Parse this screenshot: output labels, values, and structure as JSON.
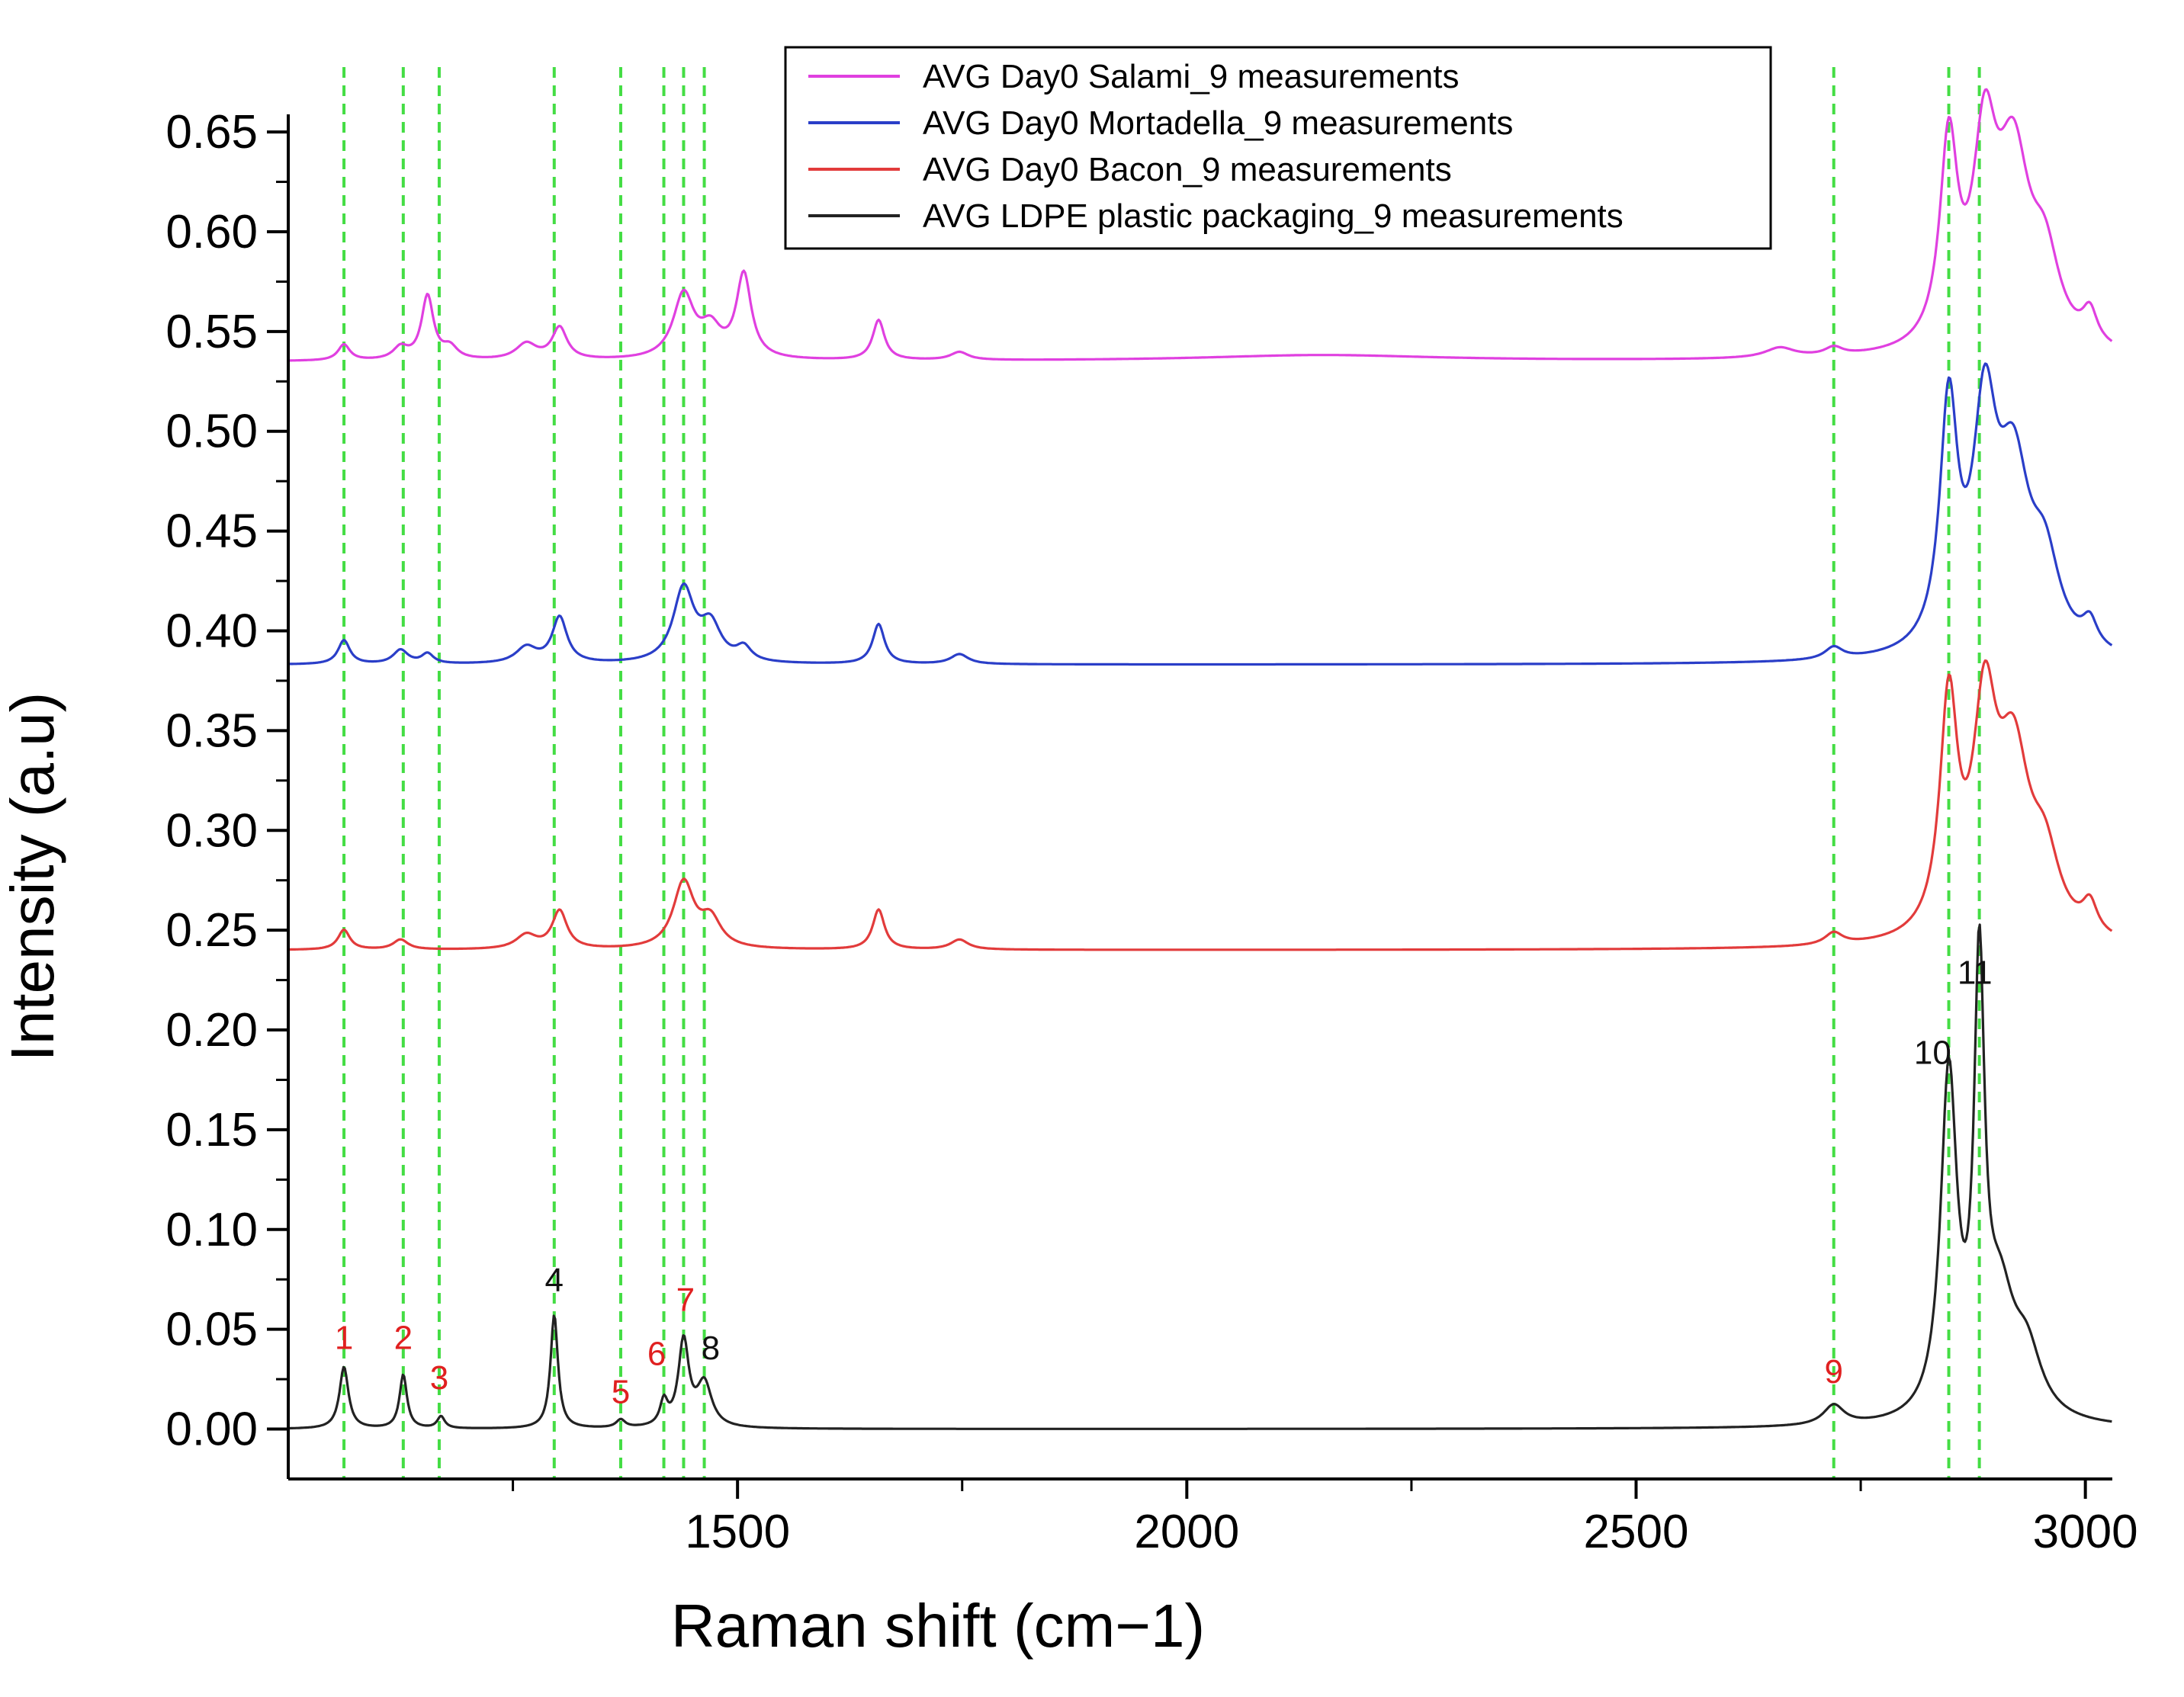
{
  "chart_data": {
    "type": "line",
    "title": "",
    "xlabel": "Raman shift (cm−1)",
    "ylabel": "Intensity (a.u)",
    "xlim": [
      1000,
      3030
    ],
    "ylim": [
      -0.025,
      0.655
    ],
    "xticks": [
      1500,
      2000,
      2500,
      3000
    ],
    "xtick_labels": [
      "1500",
      "2000",
      "2500",
      "3000"
    ],
    "yticks": [
      0.0,
      0.05,
      0.1,
      0.15,
      0.2,
      0.25,
      0.3,
      0.35,
      0.4,
      0.45,
      0.5,
      0.55,
      0.6,
      0.65
    ],
    "ytick_labels": [
      "0.00",
      "0.05",
      "0.10",
      "0.15",
      "0.20",
      "0.25",
      "0.30",
      "0.35",
      "0.40",
      "0.45",
      "0.50",
      "0.55",
      "0.60",
      "0.65"
    ],
    "legend_position": "top-center",
    "series": [
      {
        "name": "AVG Day0 Salami_9 measurements",
        "color": "#e040e0",
        "baseline": 0.535,
        "peaks": [
          [
            1062,
            0.008,
            8
          ],
          [
            1125,
            0.006,
            10
          ],
          [
            1155,
            0.032,
            8
          ],
          [
            1180,
            0.006,
            10
          ],
          [
            1265,
            0.008,
            14
          ],
          [
            1302,
            0.016,
            10
          ],
          [
            1440,
            0.032,
            14
          ],
          [
            1470,
            0.014,
            14
          ],
          [
            1507,
            0.042,
            10
          ],
          [
            1657,
            0.02,
            8
          ],
          [
            1747,
            0.004,
            12
          ],
          [
            2150,
            0.003,
            160
          ],
          [
            2660,
            0.005,
            20
          ],
          [
            2720,
            0.004,
            12
          ],
          [
            2848,
            0.1,
            12
          ],
          [
            2888,
            0.095,
            16
          ],
          [
            2920,
            0.09,
            22
          ],
          [
            2955,
            0.04,
            20
          ],
          [
            3005,
            0.016,
            10
          ]
        ]
      },
      {
        "name": "AVG Day0 Mortadella_9 measurements",
        "color": "#2a3ec8",
        "baseline": 0.383,
        "peaks": [
          [
            1062,
            0.012,
            8
          ],
          [
            1125,
            0.007,
            10
          ],
          [
            1155,
            0.005,
            8
          ],
          [
            1265,
            0.008,
            14
          ],
          [
            1302,
            0.023,
            10
          ],
          [
            1440,
            0.037,
            14
          ],
          [
            1470,
            0.018,
            14
          ],
          [
            1507,
            0.007,
            10
          ],
          [
            1657,
            0.02,
            8
          ],
          [
            1747,
            0.005,
            12
          ],
          [
            2720,
            0.006,
            12
          ],
          [
            2848,
            0.12,
            12
          ],
          [
            2888,
            0.11,
            16
          ],
          [
            2920,
            0.085,
            22
          ],
          [
            2955,
            0.04,
            20
          ],
          [
            3005,
            0.013,
            10
          ]
        ]
      },
      {
        "name": "AVG Day0 Bacon_9 measurements",
        "color": "#e23b3b",
        "baseline": 0.24,
        "peaks": [
          [
            1062,
            0.01,
            8
          ],
          [
            1125,
            0.005,
            10
          ],
          [
            1265,
            0.007,
            14
          ],
          [
            1302,
            0.019,
            10
          ],
          [
            1440,
            0.033,
            14
          ],
          [
            1470,
            0.014,
            14
          ],
          [
            1657,
            0.02,
            8
          ],
          [
            1747,
            0.005,
            12
          ],
          [
            2720,
            0.006,
            12
          ],
          [
            2848,
            0.115,
            12
          ],
          [
            2888,
            0.105,
            16
          ],
          [
            2920,
            0.085,
            22
          ],
          [
            2955,
            0.035,
            20
          ],
          [
            3005,
            0.015,
            10
          ]
        ]
      },
      {
        "name": "AVG LDPE plastic packaging_9 measurements",
        "color": "#222222",
        "baseline": 0.0,
        "peaks": [
          [
            1062,
            0.031,
            6
          ],
          [
            1128,
            0.027,
            5
          ],
          [
            1170,
            0.006,
            5
          ],
          [
            1296,
            0.057,
            5
          ],
          [
            1370,
            0.004,
            6
          ],
          [
            1418,
            0.012,
            5
          ],
          [
            1440,
            0.043,
            7
          ],
          [
            1463,
            0.022,
            10
          ],
          [
            2720,
            0.01,
            14
          ],
          [
            2848,
            0.17,
            11
          ],
          [
            2882,
            0.21,
            7
          ],
          [
            2905,
            0.055,
            20
          ],
          [
            2935,
            0.03,
            20
          ]
        ]
      }
    ],
    "vlines": [
      1062,
      1128,
      1168,
      1296,
      1370,
      1418,
      1440,
      1463,
      2720,
      2848,
      2882
    ],
    "vline_color": "#44dd44",
    "peak_labels": [
      {
        "text": "1",
        "x": 1062,
        "y": 0.037,
        "color": "#e02020"
      },
      {
        "text": "2",
        "x": 1128,
        "y": 0.037,
        "color": "#e02020"
      },
      {
        "text": "3",
        "x": 1168,
        "y": 0.017,
        "color": "#e02020"
      },
      {
        "text": "4",
        "x": 1296,
        "y": 0.066,
        "color": "#111111"
      },
      {
        "text": "5",
        "x": 1370,
        "y": 0.01,
        "color": "#e02020"
      },
      {
        "text": "6",
        "x": 1410,
        "y": 0.029,
        "color": "#e02020"
      },
      {
        "text": "7",
        "x": 1442,
        "y": 0.056,
        "color": "#e02020"
      },
      {
        "text": "8",
        "x": 1470,
        "y": 0.032,
        "color": "#111111"
      },
      {
        "text": "9",
        "x": 2720,
        "y": 0.02,
        "color": "#e02020"
      },
      {
        "text": "10",
        "x": 2830,
        "y": 0.18,
        "color": "#111111"
      },
      {
        "text": "11",
        "x": 2877,
        "y": 0.22,
        "color": "#111111"
      }
    ]
  }
}
